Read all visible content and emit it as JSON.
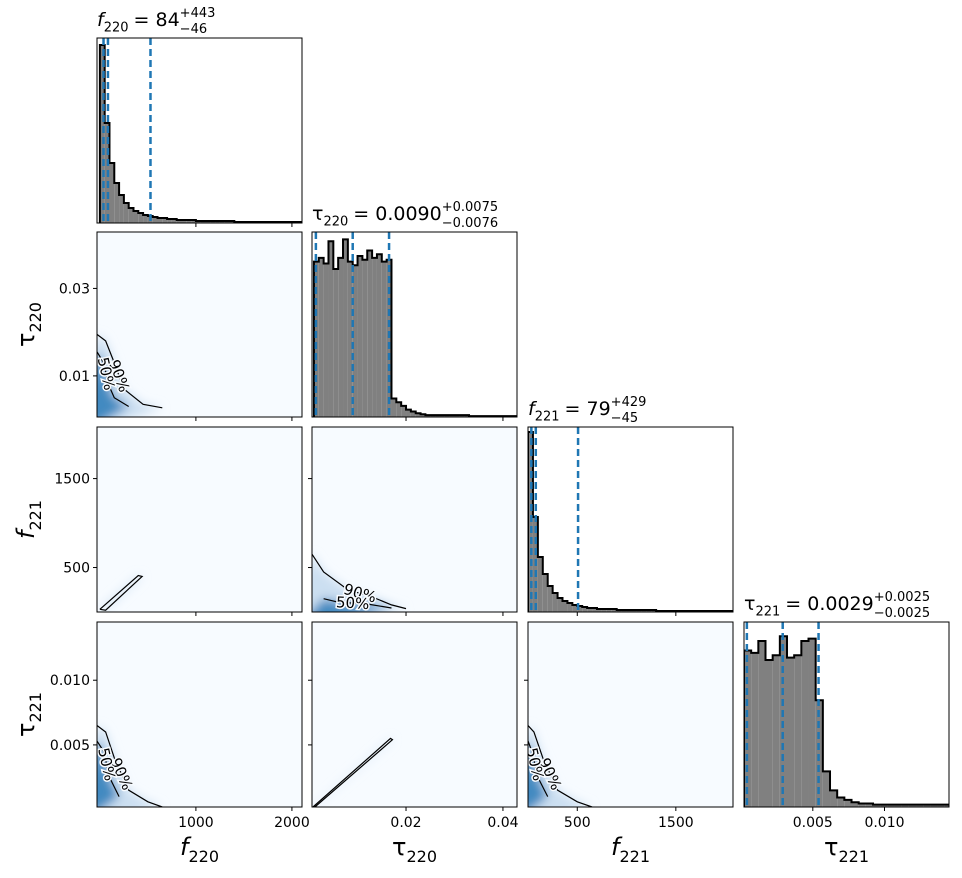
{
  "chart_data": {
    "type": "corner",
    "hist_color": "#808080",
    "edge_color": "#000000",
    "quantile_color": "#1f77b4",
    "panel_color": "#f7fbff",
    "density_colors": [
      "#c6dbef",
      "#2b7bba"
    ],
    "contour_color": "#000000",
    "parameters": [
      {
        "symbol": "f",
        "subscript": "220",
        "lim": [
          -30,
          2105
        ],
        "xticks": [
          1000,
          2000
        ],
        "title": {
          "value": "= 84",
          "plus": "+443",
          "minus": "−46"
        },
        "quantiles": [
          38,
          84,
          527
        ],
        "hist": {
          "ylim": [
            0,
            185
          ],
          "bins": [
            0,
            50,
            100,
            150,
            200,
            250,
            300,
            350,
            400,
            450,
            500,
            550,
            600,
            650,
            700,
            750,
            800,
            850,
            900,
            950,
            1000,
            1050,
            1100,
            1150,
            1200,
            1250,
            1300,
            1350,
            1400,
            1450,
            1500,
            1550,
            1600,
            1650,
            1700,
            1750,
            1800,
            1850,
            1900,
            1950,
            2000,
            2050,
            2100
          ],
          "counts": [
            178,
            100,
            60,
            40,
            28,
            20,
            15,
            12,
            10,
            8,
            7,
            6,
            5,
            5,
            4,
            4,
            3,
            3,
            3,
            3,
            2,
            2,
            2,
            2,
            2,
            2,
            2,
            2,
            1,
            1,
            1,
            1,
            1,
            1,
            1,
            1,
            1,
            1,
            1,
            1,
            1,
            1
          ]
        }
      },
      {
        "symbol": "τ",
        "subscript": "220",
        "lim": [
          0.0006,
          0.0429
        ],
        "xticks": [
          0.02,
          0.04
        ],
        "yticks": [
          0.01,
          0.03
        ],
        "title": {
          "value": "= 0.0090",
          "plus": "+0.0075",
          "minus": "−0.0076"
        },
        "quantiles": [
          0.0014,
          0.009,
          0.0165
        ],
        "hist": {
          "ylim": [
            0,
            100
          ],
          "bins": [
            0.001,
            0.002,
            0.003,
            0.004,
            0.005,
            0.006,
            0.007,
            0.008,
            0.009,
            0.01,
            0.011,
            0.012,
            0.013,
            0.014,
            0.015,
            0.016,
            0.017,
            0.018,
            0.019,
            0.02,
            0.021,
            0.022,
            0.023,
            0.024,
            0.025,
            0.026,
            0.027,
            0.028,
            0.029,
            0.03,
            0.031,
            0.032,
            0.033,
            0.034,
            0.035,
            0.036,
            0.037,
            0.038,
            0.039,
            0.04,
            0.041,
            0.042,
            0.043
          ],
          "counts": [
            84,
            86,
            83,
            95,
            80,
            86,
            96,
            84,
            82,
            87,
            85,
            90,
            86,
            88,
            84,
            85,
            10,
            8,
            6,
            4,
            3,
            2,
            1.5,
            1,
            1,
            1,
            1,
            1,
            1,
            1,
            1,
            1,
            0.5,
            0.5,
            0.5,
            0.5,
            0.5,
            0.5,
            0.5,
            0.5,
            0.5,
            0.5
          ]
        }
      },
      {
        "symbol": "f",
        "subscript": "221",
        "lim": [
          0,
          2080
        ],
        "xticks": [
          500,
          1500
        ],
        "yticks": [
          500,
          1500
        ],
        "title": {
          "value": "= 79",
          "plus": "+429",
          "minus": "−45"
        },
        "quantiles": [
          34,
          79,
          508
        ],
        "hist": {
          "ylim": [
            0,
            185
          ],
          "bins": [
            0,
            50,
            100,
            150,
            200,
            250,
            300,
            350,
            400,
            450,
            500,
            550,
            600,
            650,
            700,
            750,
            800,
            850,
            900,
            950,
            1000,
            1050,
            1100,
            1150,
            1200,
            1250,
            1300,
            1350,
            1400,
            1450,
            1500,
            1550,
            1600,
            1650,
            1700,
            1750,
            1800,
            1850,
            1900,
            1950,
            2000,
            2050,
            2100
          ],
          "counts": [
            180,
            95,
            55,
            38,
            26,
            19,
            14,
            11,
            9,
            7,
            6,
            5,
            4,
            4,
            3,
            3,
            3,
            3,
            2,
            2,
            2,
            2,
            2,
            2,
            2,
            2,
            1,
            1,
            1,
            1,
            1,
            1,
            1,
            1,
            1,
            1,
            1,
            1,
            1,
            1,
            1,
            1
          ]
        }
      },
      {
        "symbol": "τ",
        "subscript": "221",
        "lim": [
          0.0002,
          0.0145
        ],
        "xticks": [
          0.005,
          {
            "value": 0.01,
            "label": "0.010"
          }
        ],
        "yticks": [
          0.005,
          {
            "value": 0.01,
            "label": "0.010"
          }
        ],
        "title": {
          "value": "= 0.0029",
          "plus": "+0.0025",
          "minus": "−0.0025"
        },
        "quantiles": [
          0.0004,
          0.0029,
          0.0054
        ],
        "hist": {
          "ylim": [
            0,
            78
          ],
          "bins": [
            0.0002,
            0.0007,
            0.0012,
            0.0017,
            0.0022,
            0.0027,
            0.0032,
            0.0037,
            0.0042,
            0.0047,
            0.0052,
            0.0057,
            0.0062,
            0.0067,
            0.0072,
            0.0077,
            0.0082,
            0.0087,
            0.0092,
            0.0097,
            0.0102,
            0.0107,
            0.0112,
            0.0117,
            0.0122,
            0.0127,
            0.0132,
            0.0137,
            0.0142,
            0.0147
          ],
          "counts": [
            66,
            65,
            70,
            62,
            64,
            72,
            63,
            64,
            70,
            71,
            45,
            15,
            7,
            4,
            3,
            2,
            1.5,
            1.5,
            1,
            1,
            1,
            1,
            1,
            1,
            1,
            1,
            1,
            1,
            1
          ]
        }
      }
    ],
    "pairs": [
      {
        "contours": [
          {
            "label": "90%",
            "points": [
              [
                -30,
                0.0195
              ],
              [
                60,
                0.018
              ],
              [
                150,
                0.013
              ],
              [
                250,
                0.007
              ],
              [
                450,
                0.0035
              ],
              [
                650,
                0.0027
              ]
            ]
          },
          {
            "label": "50%",
            "points": [
              [
                -30,
                0.0155
              ],
              [
                40,
                0.013
              ],
              [
                90,
                0.008
              ],
              [
                150,
                0.005
              ],
              [
                300,
                0.003
              ]
            ]
          }
        ]
      },
      {
        "contours": [
          {
            "points": [
              [
                0,
                30
              ],
              [
                60,
                20
              ],
              [
                440,
                400
              ],
              [
                400,
                410
              ],
              [
                0,
                30
              ]
            ]
          }
        ]
      },
      {
        "contours": [
          {
            "label": "90%",
            "points": [
              [
                0.0006,
                650
              ],
              [
                0.003,
                450
              ],
              [
                0.008,
                250
              ],
              [
                0.013,
                170
              ],
              [
                0.017,
                80
              ],
              [
                0.02,
                38
              ]
            ]
          },
          {
            "label": "50%",
            "points": [
              [
                0.003,
                150
              ],
              [
                0.006,
                110
              ],
              [
                0.012,
                90
              ],
              [
                0.017,
                45
              ]
            ]
          }
        ]
      },
      {
        "contours": [
          {
            "label": "90%",
            "points": [
              [
                -30,
                0.0065
              ],
              [
                60,
                0.006
              ],
              [
                150,
                0.004
              ],
              [
                300,
                0.0015
              ],
              [
                500,
                0.0006
              ],
              [
                650,
                0.0002
              ]
            ]
          },
          {
            "label": "50%",
            "points": [
              [
                -30,
                0.0053
              ],
              [
                40,
                0.0045
              ],
              [
                100,
                0.0025
              ],
              [
                200,
                0.001
              ]
            ]
          }
        ]
      },
      {
        "contours": [
          {
            "points": [
              [
                0.0008,
                0.0002
              ],
              [
                0.0168,
                0.0055
              ],
              [
                0.0172,
                0.0054
              ],
              [
                0.0012,
                0.0002
              ]
            ]
          }
        ]
      },
      {
        "contours": [
          {
            "label": "90%",
            "points": [
              [
                0,
                0.0065
              ],
              [
                60,
                0.006
              ],
              [
                150,
                0.004
              ],
              [
                300,
                0.0015
              ],
              [
                500,
                0.0006
              ],
              [
                650,
                0.0002
              ]
            ]
          },
          {
            "label": "50%",
            "points": [
              [
                0,
                0.0053
              ],
              [
                40,
                0.0045
              ],
              [
                100,
                0.0025
              ],
              [
                200,
                0.001
              ]
            ]
          }
        ]
      }
    ]
  }
}
